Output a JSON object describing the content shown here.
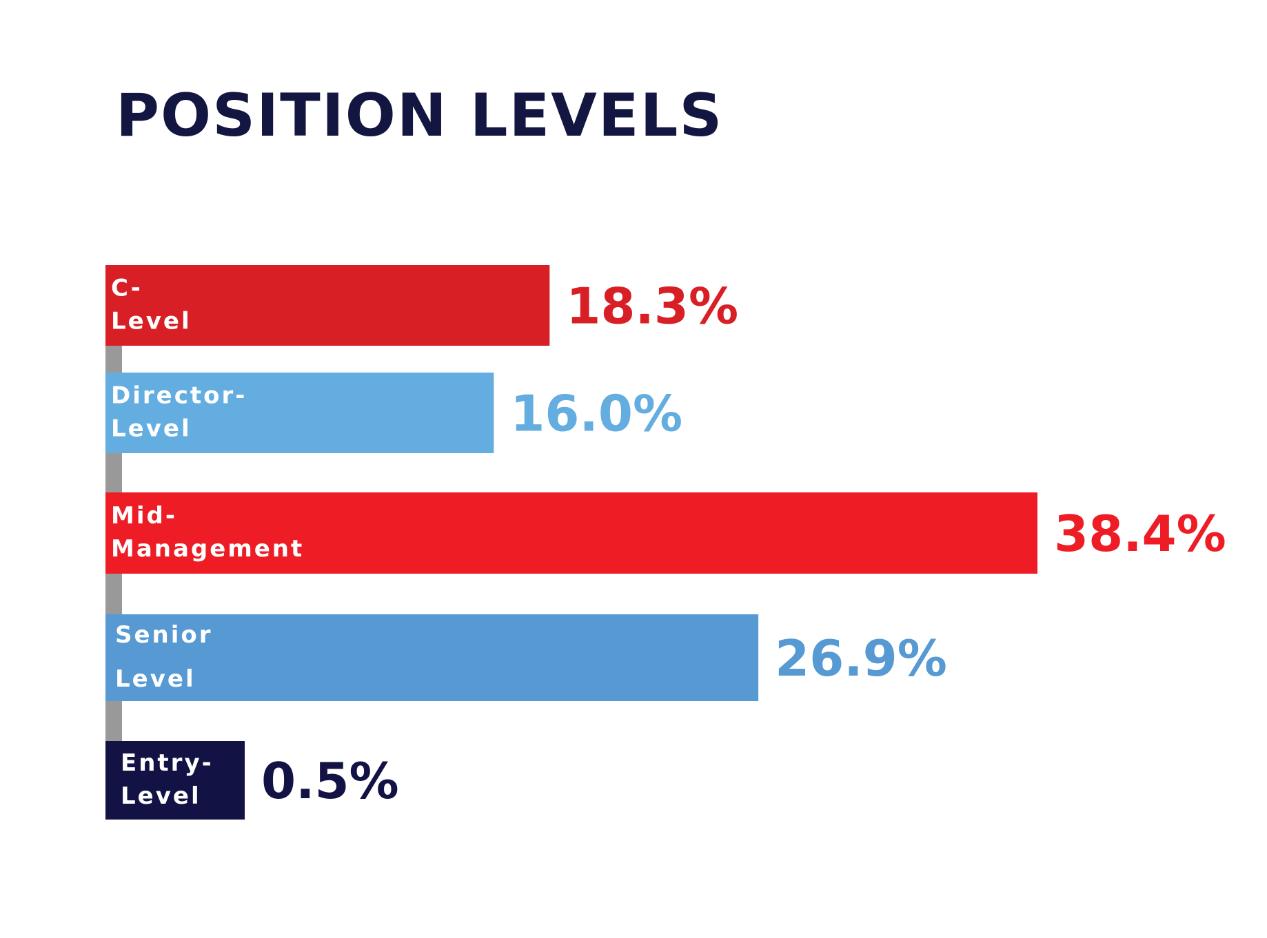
{
  "chart_data": {
    "type": "bar",
    "orientation": "horizontal",
    "title": "POSITION LEVELS",
    "categories": [
      [
        "C-",
        "Level"
      ],
      [
        "Director-",
        "Level"
      ],
      [
        "Mid-",
        "Management"
      ],
      [
        "Senior",
        "Level"
      ],
      [
        "Entry-",
        "Level"
      ]
    ],
    "values": [
      18.3,
      16.0,
      38.4,
      26.9,
      0.5
    ],
    "value_labels": [
      "18.3%",
      "16.0%",
      "38.4%",
      "26.9%",
      "0.5%"
    ],
    "colors": [
      "#d81f26",
      "#64ade0",
      "#ee1c24",
      "#5699d3",
      "#131245"
    ],
    "xlim": [
      0,
      38.4
    ],
    "grid": false,
    "legend": "none",
    "axis_line_color": "#999999"
  }
}
